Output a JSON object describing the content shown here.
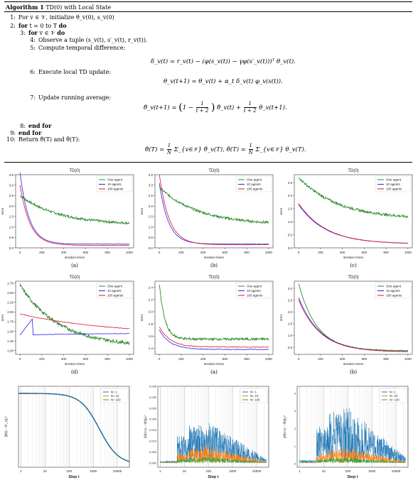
{
  "algorithm": {
    "title_bold": "Algorithm 1",
    "title_rest": "TD(0) with Local State",
    "lines": [
      {
        "n": "1:",
        "indent": 0,
        "parts": [
          {
            "kw": false,
            "t": "For v ∈ 𝒱, initialize θ_v(0), s_v(0)"
          }
        ]
      },
      {
        "n": "2:",
        "indent": 0,
        "parts": [
          {
            "kw": true,
            "t": "for"
          },
          {
            "kw": false,
            "t": " t = 0 to T "
          },
          {
            "kw": true,
            "t": "do"
          }
        ]
      },
      {
        "n": "3:",
        "indent": 1,
        "parts": [
          {
            "kw": true,
            "t": "for"
          },
          {
            "kw": false,
            "t": " v ∈ 𝒱 "
          },
          {
            "kw": true,
            "t": "do"
          }
        ]
      },
      {
        "n": "4:",
        "indent": 2,
        "parts": [
          {
            "kw": false,
            "t": "Observe a tuple (s_v(t), s′_v(t), r_v(t))."
          }
        ]
      },
      {
        "n": "5:",
        "indent": 2,
        "parts": [
          {
            "kw": false,
            "t": "Compute temporal difference:"
          }
        ]
      },
      {
        "n": "6:",
        "indent": 2,
        "parts": [
          {
            "kw": false,
            "t": "Execute local TD update:"
          }
        ]
      },
      {
        "n": "7:",
        "indent": 2,
        "parts": [
          {
            "kw": false,
            "t": "Update running average:"
          }
        ]
      },
      {
        "n": "8:",
        "indent": 1,
        "parts": [
          {
            "kw": true,
            "t": "end for"
          }
        ]
      },
      {
        "n": "9:",
        "indent": 0,
        "parts": [
          {
            "kw": true,
            "t": "end for"
          }
        ]
      },
      {
        "n": "10:",
        "indent": 0,
        "parts": [
          {
            "kw": false,
            "t": "Return θ̂(T) and θ̄(T):"
          }
        ]
      }
    ],
    "eq_td": "δ_v(t) = r_v(t) − (φ(s_v(t)) − γφ(s′_v(t)))ᵀ θ_v(t).",
    "eq_update": "θ_v(t+1) = θ_v(t) + α_t δ_v(t) φ_v(s(t)).",
    "eq_avg_left": "θ̂_v(t+1) =",
    "eq_avg_mid": "θ̂_v(t) +",
    "eq_avg_right": "θ_v(t+1).",
    "eq_return_a": "θ̂(T) =",
    "eq_return_b": "Σ_{v∈𝒱} θ̂_v(T),    θ̄(T) =",
    "eq_return_c": "Σ_{v∈𝒱} θ_v(T).",
    "frac_one": "1",
    "frac_t2": "t + 2",
    "frac_N": "N"
  },
  "colors": {
    "one": "#2e8b2e",
    "ten": "#2222ee",
    "hundred": "#e0102a",
    "n1": "#1f77b4",
    "n10": "#ff7f0e",
    "n100": "#2ca02c"
  },
  "legend_labels": [
    "One agent",
    "10 agents",
    "100 agents"
  ],
  "legend_labels_n": [
    "N= 1",
    "N= 10",
    "N= 100"
  ],
  "charts": [
    {
      "id": "c1",
      "title": "TD(0)",
      "caption": "(a)",
      "xlabel": "iteration times",
      "ylabel": "error",
      "ylim": [
        0,
        3.5
      ],
      "yticks": [
        "0.0",
        "0.5",
        "1.0",
        "1.5",
        "2.0",
        "2.5",
        "3.0",
        "3.5"
      ],
      "xticks": [
        "0",
        "200",
        "400",
        "600",
        "800",
        "1000"
      ],
      "start": [
        2.5,
        3.6,
        3.0
      ],
      "end": [
        1.1,
        0.18,
        0.12
      ],
      "noise": 0.12
    },
    {
      "id": "c2",
      "title": "TD(0)",
      "caption": "(b)",
      "xlabel": "iteration times",
      "ylabel": "error",
      "ylim": [
        0,
        3.5
      ],
      "yticks": [
        "0.0",
        "0.5",
        "1.0",
        "1.5",
        "2.0",
        "2.5",
        "3.0",
        "3.5"
      ],
      "xticks": [
        "0",
        "200",
        "400",
        "600",
        "800",
        "1000"
      ],
      "start": [
        2.9,
        3.1,
        3.5
      ],
      "end": [
        1.1,
        0.18,
        0.15
      ],
      "noise": 0.12
    },
    {
      "id": "c3",
      "title": "TD(0)",
      "caption": "(c)",
      "xlabel": "iteration times",
      "ylabel": "error",
      "ylim": [
        0,
        2.8
      ],
      "yticks": [
        "0.0",
        "0.5",
        "1.0",
        "1.5",
        "2.0",
        "2.5"
      ],
      "xticks": [
        "0",
        "200",
        "400",
        "600",
        "800",
        "1000"
      ],
      "start": [
        2.7,
        1.65,
        1.7
      ],
      "end": [
        1.1,
        0.15,
        0.15
      ],
      "noise": 0.1
    },
    {
      "id": "c4",
      "title": "TD(0)",
      "caption": "(d)",
      "xlabel": "iteration times",
      "ylabel": "error",
      "ylim": [
        0.9,
        2.8
      ],
      "yticks": [
        "1.00",
        "1.25",
        "1.50",
        "1.75",
        "2.00",
        "2.25",
        "2.50",
        "2.75"
      ],
      "xticks": [
        "0",
        "200",
        "400",
        "600",
        "800",
        "1000"
      ],
      "start": [
        2.7,
        1.4,
        1.95
      ],
      "end": [
        1.1,
        1.45,
        1.4
      ],
      "noise": 0.09
    },
    {
      "id": "c5",
      "title": "TD(0)",
      "caption": "(a)",
      "xlabel": "iteration times",
      "ylabel": "error",
      "ylim": [
        1.3,
        2.5
      ],
      "yticks": [
        "1.4",
        "1.6",
        "1.8",
        "2.0",
        "2.2",
        "2.4"
      ],
      "xticks": [
        "0",
        "200",
        "400",
        "600",
        "800",
        "1000"
      ],
      "start": [
        2.45,
        1.7,
        1.75
      ],
      "end": [
        1.55,
        1.38,
        1.42
      ],
      "noise": 0.04
    },
    {
      "id": "c6",
      "title": "TD(0)",
      "caption": "(b)",
      "xlabel": "iteration times",
      "ylabel": "error",
      "ylim": [
        0.2,
        3.3
      ],
      "yticks": [
        "0.5",
        "1.0",
        "1.5",
        "2.0",
        "2.5",
        "3.0"
      ],
      "xticks": [
        "0",
        "200",
        "400",
        "600",
        "800",
        "1000"
      ],
      "start": [
        3.2,
        2.6,
        2.5
      ],
      "end": [
        0.35,
        0.3,
        0.3
      ],
      "noise": 0.04
    }
  ],
  "log_charts": [
    {
      "id": "l1",
      "xlabel": "Step t",
      "ylabel": "||θ̄(t) − θ*_c||₂²",
      "xticks": [
        "1",
        "10",
        "100",
        "1000",
        "10000"
      ]
    },
    {
      "id": "l2",
      "xlabel": "Step t",
      "ylabel": "||θ(t+1) − θ̄(t)||₂²",
      "yticks": [
        "0.000",
        "0.005",
        "0.010",
        "0.015",
        "0.020",
        "0.025",
        "0.030",
        "0.035"
      ],
      "xticks": [
        "1",
        "10",
        "100",
        "1000",
        "10000"
      ]
    },
    {
      "id": "l3",
      "xlabel": "Step t",
      "ylabel": "||θ̂(t+1) − θ̂(t)||₂²",
      "yticks": [
        "0",
        "1",
        "2",
        "3",
        "4"
      ],
      "xticks": [
        "1",
        "10",
        "100",
        "1000",
        "10000"
      ]
    }
  ],
  "chart_data": [
    {
      "type": "line",
      "title": "TD(0)",
      "xlabel": "iteration times",
      "ylabel": "error",
      "x": [
        0,
        100,
        200,
        400,
        600,
        800,
        1000
      ],
      "series": [
        {
          "name": "One agent",
          "values": [
            2.5,
            2.4,
            2.0,
            1.5,
            1.3,
            1.2,
            1.1
          ]
        },
        {
          "name": "10 agents",
          "values": [
            3.6,
            1.5,
            0.5,
            0.25,
            0.2,
            0.18,
            0.18
          ]
        },
        {
          "name": "100 agents",
          "values": [
            3.0,
            1.3,
            0.4,
            0.2,
            0.15,
            0.13,
            0.12
          ]
        }
      ],
      "ylim": [
        0,
        3.5
      ],
      "caption": "(a)"
    },
    {
      "type": "line",
      "title": "TD(0)",
      "xlabel": "iteration times",
      "ylabel": "error",
      "x": [
        0,
        100,
        200,
        400,
        600,
        800,
        1000
      ],
      "series": [
        {
          "name": "One agent",
          "values": [
            2.9,
            2.7,
            2.2,
            1.6,
            1.3,
            1.2,
            1.1
          ]
        },
        {
          "name": "10 agents",
          "values": [
            3.1,
            1.9,
            0.9,
            0.35,
            0.2,
            0.18,
            0.18
          ]
        },
        {
          "name": "100 agents",
          "values": [
            3.5,
            2.0,
            0.9,
            0.3,
            0.2,
            0.16,
            0.15
          ]
        }
      ],
      "ylim": [
        0,
        3.5
      ],
      "caption": "(b)"
    },
    {
      "type": "line",
      "title": "TD(0)",
      "xlabel": "iteration times",
      "ylabel": "error",
      "x": [
        0,
        100,
        200,
        400,
        600,
        800,
        1000
      ],
      "series": [
        {
          "name": "One agent",
          "values": [
            2.7,
            2.5,
            2.2,
            1.7,
            1.35,
            1.2,
            1.1
          ]
        },
        {
          "name": "10 agents",
          "values": [
            1.65,
            1.3,
            1.0,
            0.6,
            0.35,
            0.2,
            0.15
          ]
        },
        {
          "name": "100 agents",
          "values": [
            1.7,
            1.35,
            1.0,
            0.6,
            0.35,
            0.2,
            0.15
          ]
        }
      ],
      "ylim": [
        0,
        2.8
      ],
      "caption": "(c)"
    },
    {
      "type": "line",
      "title": "TD(0)",
      "xlabel": "iteration times",
      "ylabel": "error",
      "x": [
        0,
        100,
        200,
        400,
        600,
        800,
        1000
      ],
      "series": [
        {
          "name": "One agent",
          "values": [
            2.7,
            2.4,
            1.9,
            1.5,
            1.3,
            1.1,
            1.1
          ]
        },
        {
          "name": "10 agents",
          "values": [
            1.4,
            1.85,
            1.85,
            1.75,
            1.65,
            1.55,
            1.45
          ]
        },
        {
          "name": "100 agents",
          "values": [
            1.95,
            1.9,
            1.85,
            1.75,
            1.65,
            1.5,
            1.4
          ]
        }
      ],
      "ylim": [
        0.9,
        2.8
      ],
      "caption": "(d)"
    },
    {
      "type": "line",
      "title": "TD(0)",
      "xlabel": "iteration times",
      "ylabel": "error",
      "x": [
        0,
        100,
        200,
        400,
        600,
        800,
        1000
      ],
      "series": [
        {
          "name": "One agent",
          "values": [
            2.45,
            1.8,
            1.7,
            1.65,
            1.6,
            1.57,
            1.55
          ]
        },
        {
          "name": "10 agents",
          "values": [
            1.7,
            1.55,
            1.45,
            1.42,
            1.4,
            1.38,
            1.38
          ]
        },
        {
          "name": "100 agents",
          "values": [
            1.75,
            1.6,
            1.5,
            1.47,
            1.45,
            1.43,
            1.42
          ]
        }
      ],
      "ylim": [
        1.3,
        2.5
      ],
      "caption": "(a)"
    },
    {
      "type": "line",
      "title": "TD(0)",
      "xlabel": "iteration times",
      "ylabel": "error",
      "x": [
        0,
        100,
        200,
        400,
        600,
        800,
        1000
      ],
      "series": [
        {
          "name": "One agent",
          "values": [
            3.2,
            2.1,
            1.5,
            1.0,
            0.7,
            0.5,
            0.35
          ]
        },
        {
          "name": "10 agents",
          "values": [
            2.6,
            1.9,
            1.3,
            0.85,
            0.6,
            0.45,
            0.3
          ]
        },
        {
          "name": "100 agents",
          "values": [
            2.5,
            1.85,
            1.3,
            0.85,
            0.6,
            0.45,
            0.3
          ]
        }
      ],
      "ylim": [
        0.2,
        3.3
      ],
      "caption": "(b)"
    },
    {
      "type": "line",
      "xlabel": "Step t",
      "ylabel": "||θ̄(t) − θ*_c||₂²",
      "x": [
        1,
        10,
        100,
        1000,
        10000
      ],
      "series": [
        {
          "name": "N= 1",
          "values": [
            1,
            1,
            0.99,
            0.5,
            0.02
          ]
        },
        {
          "name": "N= 10",
          "values": [
            1,
            1,
            0.99,
            0.5,
            0.02
          ]
        },
        {
          "name": "N= 100",
          "values": [
            1,
            1,
            0.99,
            0.5,
            0.02
          ]
        }
      ]
    },
    {
      "type": "line",
      "xlabel": "Step t",
      "ylabel": "||θ(t+1) − θ̄(t)||₂²",
      "x": [
        1,
        10,
        100,
        1000,
        10000
      ],
      "series": [
        {
          "name": "N= 1",
          "values": [
            0.001,
            0.02,
            0.03,
            0.012,
            0.002
          ]
        },
        {
          "name": "N= 10",
          "values": [
            0.001,
            0.008,
            0.008,
            0.004,
            0.001
          ]
        },
        {
          "name": "N= 100",
          "values": [
            0.001,
            0.003,
            0.003,
            0.002,
            0.0005
          ]
        }
      ],
      "ylim": [
        0,
        0.037
      ]
    },
    {
      "type": "line",
      "xlabel": "Step t",
      "ylabel": "||θ̂(t+1) − θ̂(t)||₂²",
      "x": [
        1,
        10,
        100,
        1000,
        10000
      ],
      "series": [
        {
          "name": "N= 1",
          "values": [
            0.1,
            2.5,
            3.5,
            1.0,
            0.2
          ]
        },
        {
          "name": "N= 10",
          "values": [
            0.1,
            1.0,
            0.8,
            0.4,
            0.1
          ]
        },
        {
          "name": "N= 100",
          "values": [
            0.1,
            0.3,
            0.3,
            0.2,
            0.05
          ]
        }
      ],
      "ylim": [
        0,
        4.6
      ]
    }
  ]
}
